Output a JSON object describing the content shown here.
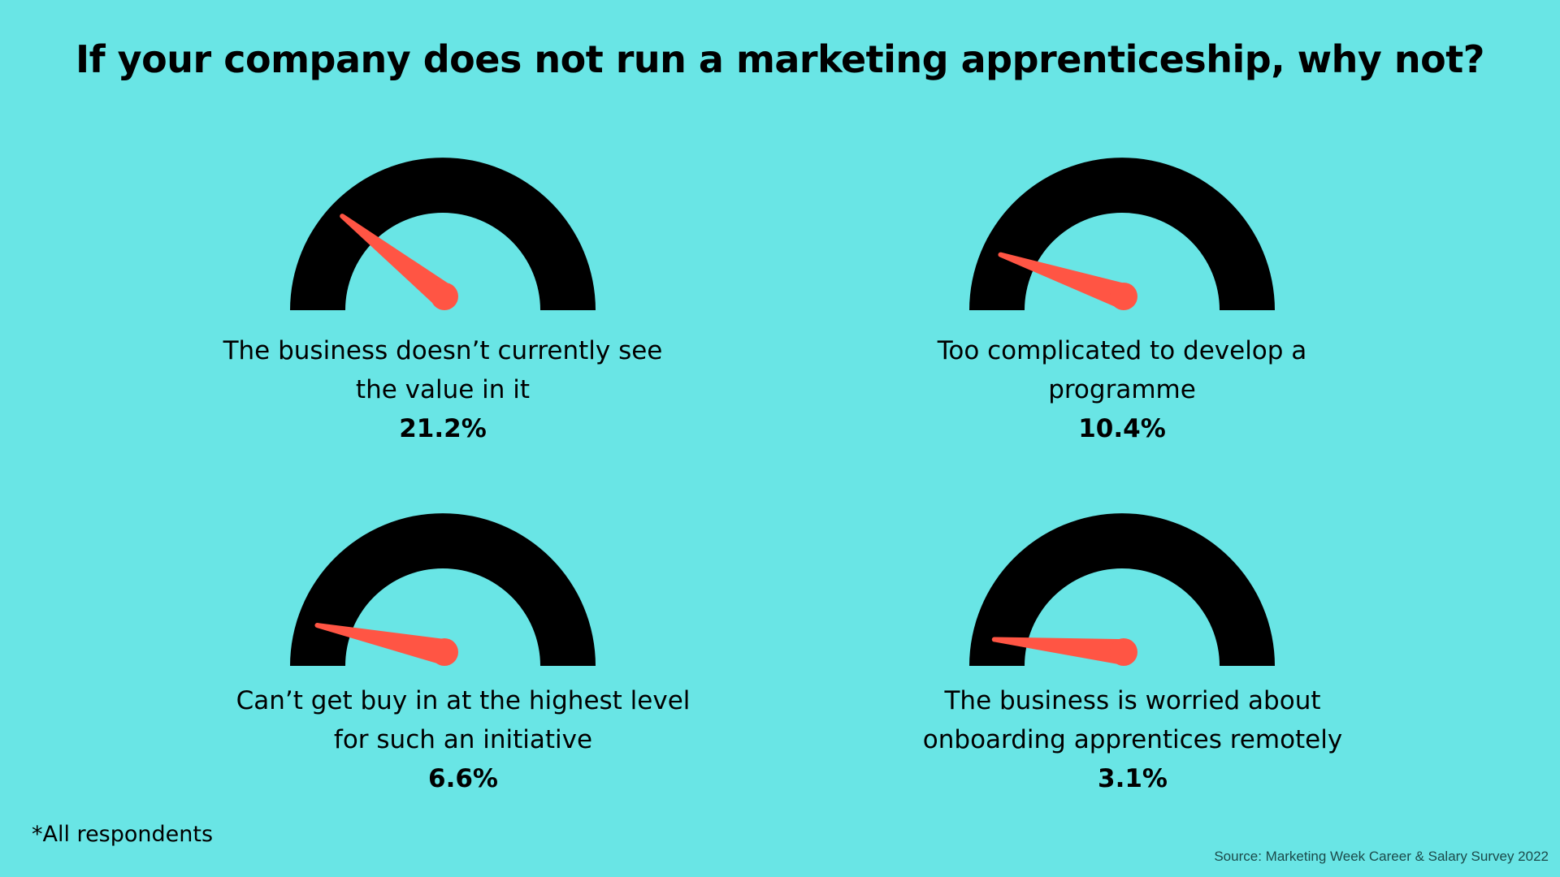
{
  "chart_data": {
    "type": "gauge",
    "title": "If your company does not run a marketing apprenticeship, why not?",
    "unit": "%",
    "range": [
      0,
      100
    ],
    "items": [
      {
        "label": "The business doesn’t currently see the value in it",
        "value": 21.2,
        "value_text": "21.2%"
      },
      {
        "label": "Too complicated to develop a programme",
        "value": 10.4,
        "value_text": "10.4%"
      },
      {
        "label": "Can’t get buy in at the highest level for such an initiative",
        "value": 6.6,
        "value_text": "6.6%"
      },
      {
        "label": "The business is worried about onboarding apprentices remotely",
        "value": 3.1,
        "value_text": "3.1%"
      }
    ],
    "colors": {
      "background": "#69e5e5",
      "gauge": "#000000",
      "needle": "#ff5544"
    }
  },
  "footnote": "*All respondents",
  "source": "Source: Marketing Week Career & Salary Survey 2022"
}
